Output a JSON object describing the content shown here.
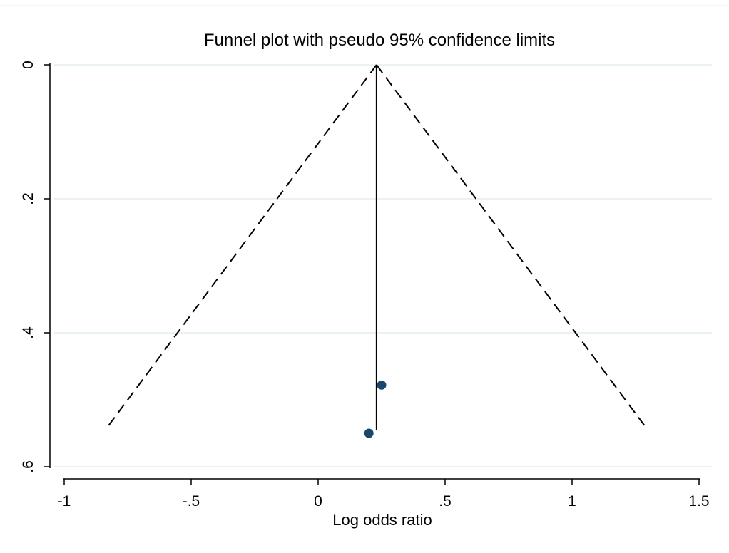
{
  "chart_data": {
    "type": "scatter",
    "title": "Funnel plot with pseudo 95% confidence limits",
    "xlabel": "Log odds ratio",
    "ylabel": "",
    "xlim": [
      -1,
      1.5
    ],
    "ylim": [
      0,
      0.6
    ],
    "y_reversed": true,
    "x_ticks": [
      -1,
      -0.5,
      0,
      0.5,
      1,
      1.5
    ],
    "x_tick_labels": [
      "-1",
      "-.5",
      "0",
      ".5",
      "1",
      "1.5"
    ],
    "y_ticks": [
      0,
      0.2,
      0.4,
      0.6
    ],
    "y_tick_labels": [
      "0",
      ".2",
      ".4",
      ".6"
    ],
    "grid": "horizontal",
    "pooled_estimate": 0.23,
    "confidence_limits": {
      "se_max": 0.545,
      "left": [
        [
          0.23,
          0
        ],
        [
          -0.838,
          0.545
        ]
      ],
      "right": [
        [
          0.23,
          0
        ],
        [
          1.298,
          0.545
        ]
      ]
    },
    "series": [
      {
        "points": [
          {
            "x": 0.25,
            "y": 0.478
          },
          {
            "x": 0.2,
            "y": 0.55
          }
        ]
      }
    ],
    "colors": {
      "points": "#1a476f",
      "gridlines": "#eaf2f3",
      "lines": "#000000"
    }
  }
}
